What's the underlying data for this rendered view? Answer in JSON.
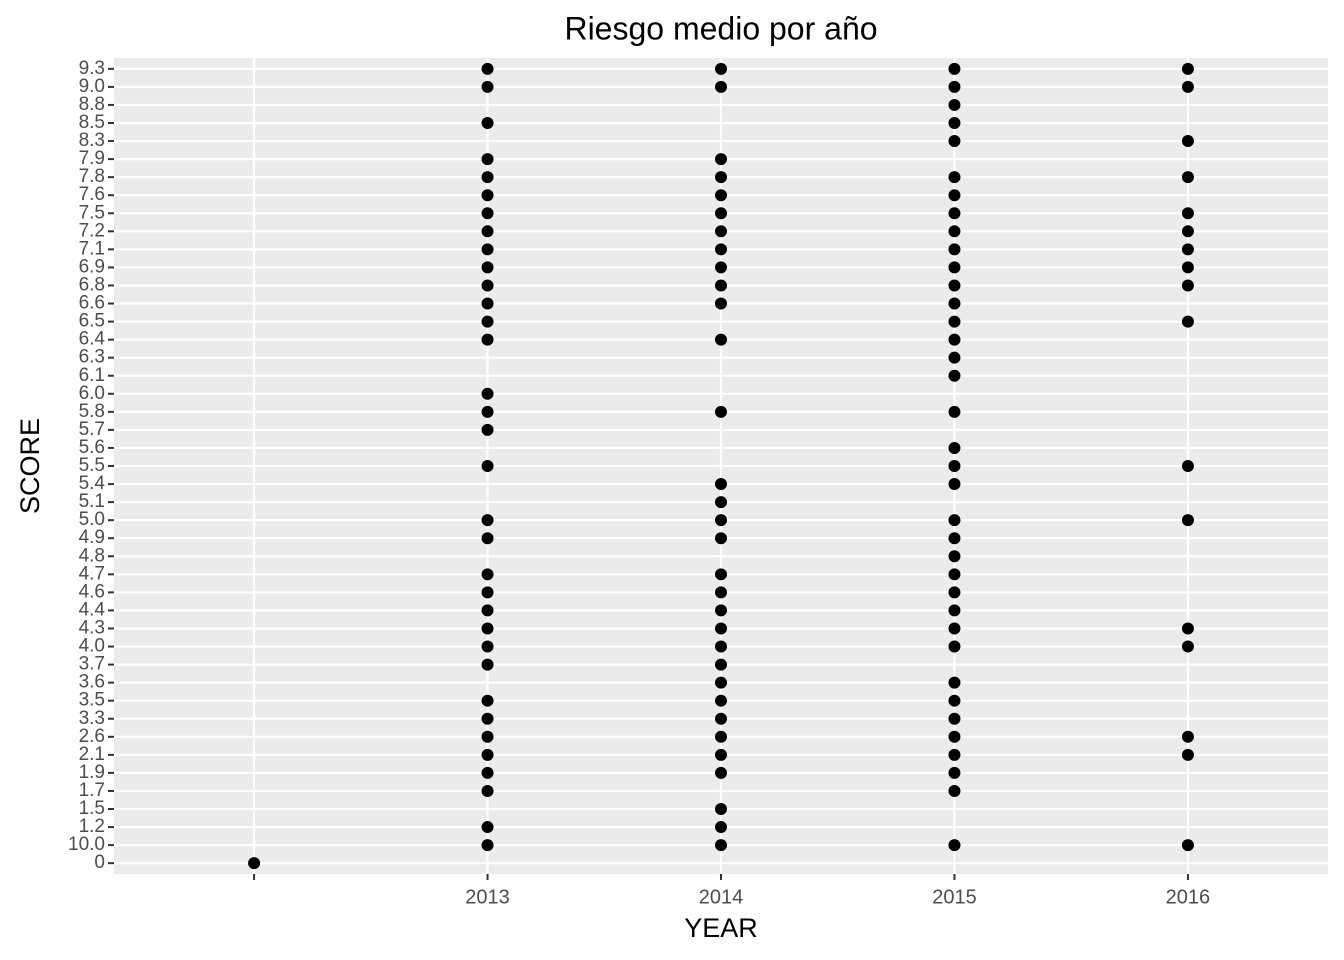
{
  "chart_data": {
    "type": "scatter",
    "title": "Riesgo medio por año",
    "x_label": "YEAR",
    "y_label": "SCORE",
    "categories": [
      null,
      "2013",
      "2014",
      "2015",
      "2016"
    ],
    "y_categories": [
      "0",
      "10.0",
      "1.2",
      "1.5",
      "1.7",
      "1.9",
      "2.1",
      "2.6",
      "3.3",
      "3.5",
      "3.6",
      "3.7",
      "4.0",
      "4.3",
      "4.4",
      "4.6",
      "4.7",
      "4.8",
      "4.9",
      "5.0",
      "5.1",
      "5.4",
      "5.5",
      "5.6",
      "5.7",
      "5.8",
      "6.0",
      "6.1",
      "6.3",
      "6.4",
      "6.5",
      "6.6",
      "6.8",
      "6.9",
      "7.1",
      "7.2",
      "7.5",
      "7.6",
      "7.8",
      "7.9",
      "8.3",
      "8.5",
      "8.8",
      "9.0",
      "9.3"
    ],
    "values": [
      [
        "0"
      ],
      [
        "10.0",
        "1.2",
        "1.7",
        "1.9",
        "2.1",
        "2.6",
        "3.3",
        "3.5",
        "3.7",
        "4.0",
        "4.3",
        "4.4",
        "4.6",
        "4.7",
        "4.9",
        "5.0",
        "5.5",
        "5.7",
        "5.8",
        "6.0",
        "6.4",
        "6.5",
        "6.6",
        "6.8",
        "6.9",
        "7.1",
        "7.2",
        "7.5",
        "7.6",
        "7.8",
        "7.9",
        "8.5",
        "9.0",
        "9.3"
      ],
      [
        "10.0",
        "1.2",
        "1.5",
        "1.9",
        "2.1",
        "2.6",
        "3.3",
        "3.5",
        "3.6",
        "3.7",
        "4.0",
        "4.3",
        "4.4",
        "4.6",
        "4.7",
        "4.9",
        "5.0",
        "5.1",
        "5.4",
        "5.8",
        "6.4",
        "6.6",
        "6.8",
        "6.9",
        "7.1",
        "7.2",
        "7.5",
        "7.6",
        "7.8",
        "7.9",
        "9.0",
        "9.3"
      ],
      [
        "10.0",
        "1.7",
        "1.9",
        "2.1",
        "2.6",
        "3.3",
        "3.5",
        "3.6",
        "4.0",
        "4.3",
        "4.4",
        "4.6",
        "4.7",
        "4.8",
        "4.9",
        "5.0",
        "5.4",
        "5.5",
        "5.6",
        "5.8",
        "6.1",
        "6.3",
        "6.4",
        "6.5",
        "6.6",
        "6.8",
        "6.9",
        "7.1",
        "7.2",
        "7.5",
        "7.6",
        "7.8",
        "8.3",
        "8.5",
        "8.8",
        "9.0",
        "9.3"
      ],
      [
        "10.0",
        "2.1",
        "2.6",
        "4.0",
        "4.3",
        "5.0",
        "5.5",
        "6.5",
        "6.8",
        "6.9",
        "7.1",
        "7.2",
        "7.5",
        "7.8",
        "8.3",
        "9.0",
        "9.3"
      ]
    ],
    "color": "#000000",
    "background": "#ebebeb",
    "grid": true
  }
}
